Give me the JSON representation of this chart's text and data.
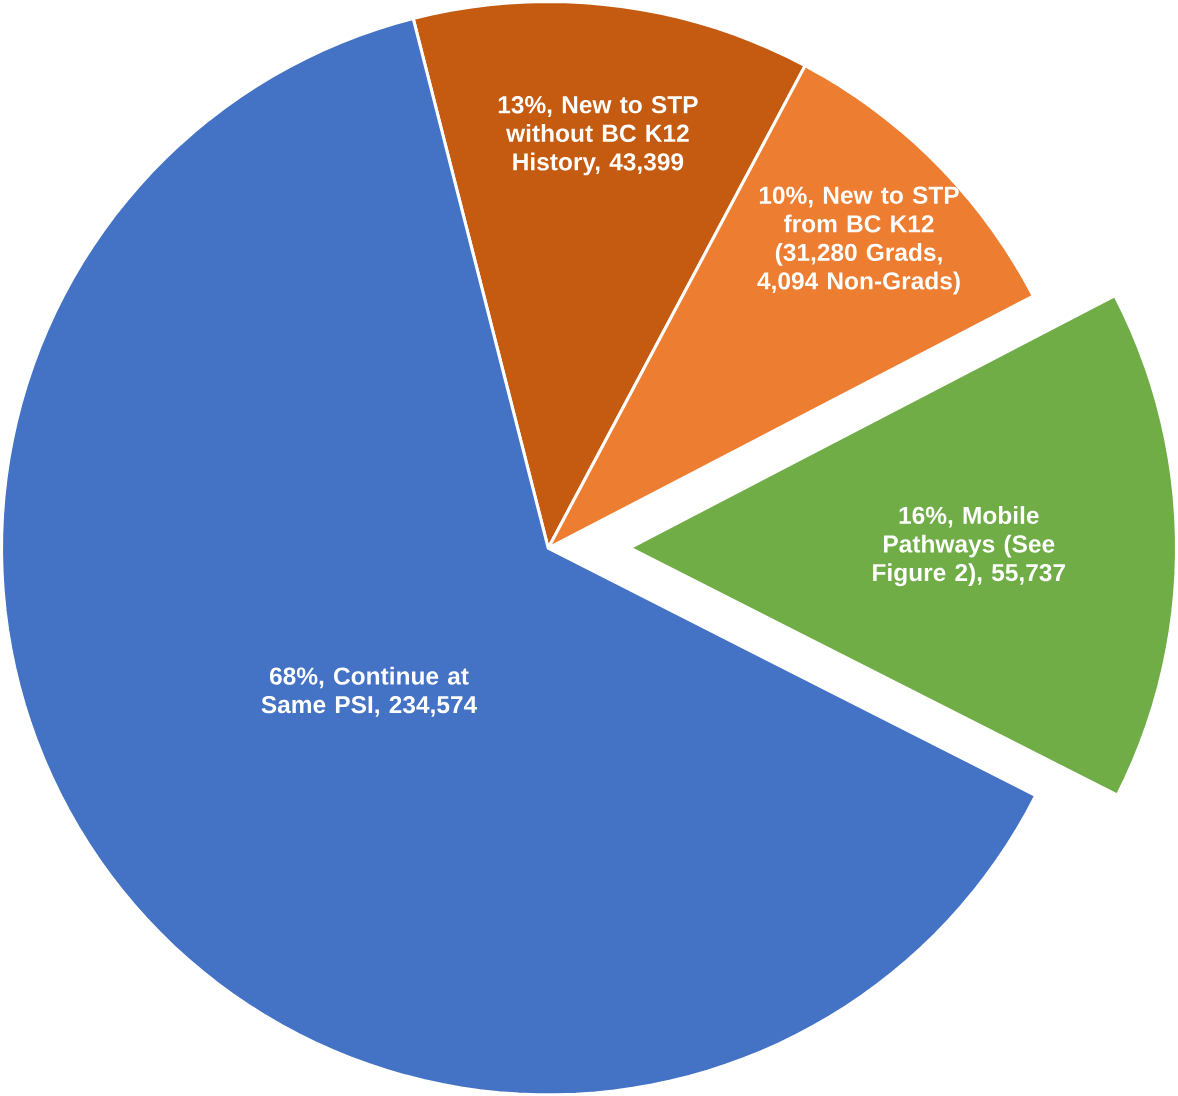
{
  "chart_data": {
    "type": "pie",
    "categories": [
      "13%, New to STP without BC K12 History, 43,399",
      "10%, New to STP from BC K12 (31,280 Grads, 4,094 Non-Grads)",
      "16%, Mobile Pathways (See Figure 2), 55,737",
      "68%, Continue at Same PSI, 234,574"
    ],
    "values": [
      43399,
      35374,
      55737,
      234574
    ],
    "colors": [
      "#c55a11",
      "#ed7d31",
      "#70ad47",
      "#4472c4"
    ]
  }
}
